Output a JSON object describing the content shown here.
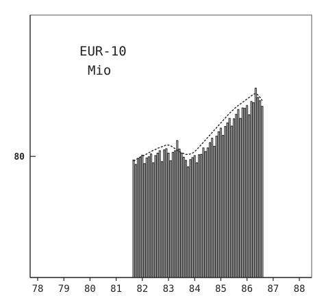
{
  "chart_data": {
    "type": "bar",
    "title": "EUR-10",
    "subtitle": "Mio",
    "xlabel": "",
    "ylabel": "",
    "x_tick_labels": [
      "78",
      "79",
      "80",
      "81",
      "82",
      "83",
      "84",
      "85",
      "86",
      "87",
      "88"
    ],
    "x_range": [
      1978,
      1988
    ],
    "ylim": [
      50,
      115
    ],
    "y_ticks": [
      {
        "value": 80,
        "label": "80"
      }
    ],
    "grid": false,
    "legend": "none",
    "trend_line": "dashed",
    "monthly_start": "1981-09",
    "values": [
      79.1,
      78.0,
      79.5,
      79.8,
      80.3,
      78.2,
      79.6,
      79.9,
      80.6,
      78.4,
      80.2,
      80.8,
      81.4,
      78.7,
      81.6,
      81.9,
      80.8,
      78.9,
      81.0,
      81.4,
      83.9,
      81.8,
      80.8,
      79.8,
      79.0,
      77.4,
      79.2,
      79.7,
      80.2,
      78.4,
      80.4,
      80.5,
      82.1,
      81.2,
      82.1,
      83.4,
      84.5,
      82.5,
      85.0,
      86.1,
      87.0,
      85.2,
      87.4,
      88.3,
      89.4,
      87.5,
      89.3,
      90.4,
      91.6,
      89.4,
      92.0,
      91.9,
      92.6,
      90.3,
      93.6,
      93.3,
      96.9,
      94.6,
      93.8,
      92.4
    ],
    "trend": [
      78.8,
      79.2,
      79.5,
      79.8,
      80.1,
      80.3,
      80.6,
      80.9,
      81.2,
      81.5,
      81.7,
      82.0,
      82.2,
      82.4,
      82.6,
      82.8,
      82.8,
      82.6,
      82.3,
      81.9,
      81.5,
      81.2,
      80.9,
      80.7,
      80.5,
      80.5,
      80.6,
      80.8,
      81.2,
      81.7,
      82.3,
      82.9,
      83.5,
      84.1,
      84.7,
      85.3,
      85.9,
      86.5,
      87.1,
      87.7,
      88.3,
      88.9,
      89.5,
      90.1,
      90.7,
      91.2,
      91.7,
      92.2,
      92.6,
      93.0,
      93.4,
      93.8,
      94.2,
      94.6,
      95.0,
      95.4,
      95.6,
      95.2,
      94.6,
      93.8
    ]
  }
}
